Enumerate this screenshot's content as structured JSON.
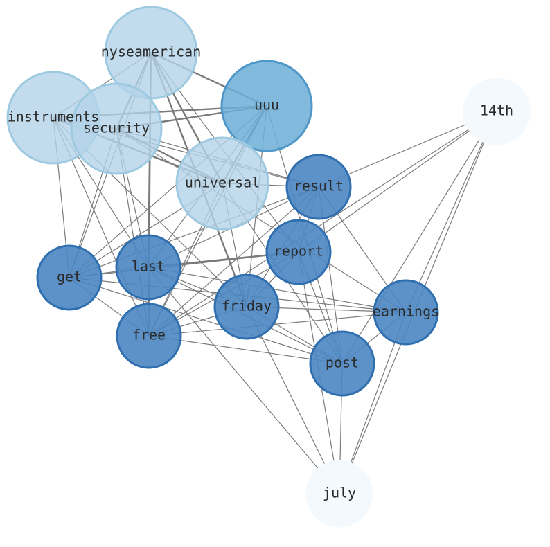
{
  "nodes": [
    {
      "label": "nyseamerican"
    },
    {
      "label": "uuu"
    },
    {
      "label": "14th"
    },
    {
      "label": "instruments"
    },
    {
      "label": "security"
    },
    {
      "label": "universal"
    },
    {
      "label": "result"
    },
    {
      "label": "report"
    },
    {
      "label": "get"
    },
    {
      "label": "last"
    },
    {
      "label": "friday"
    },
    {
      "label": "earnings"
    },
    {
      "label": "free"
    },
    {
      "label": "post"
    },
    {
      "label": "july"
    }
  ]
}
